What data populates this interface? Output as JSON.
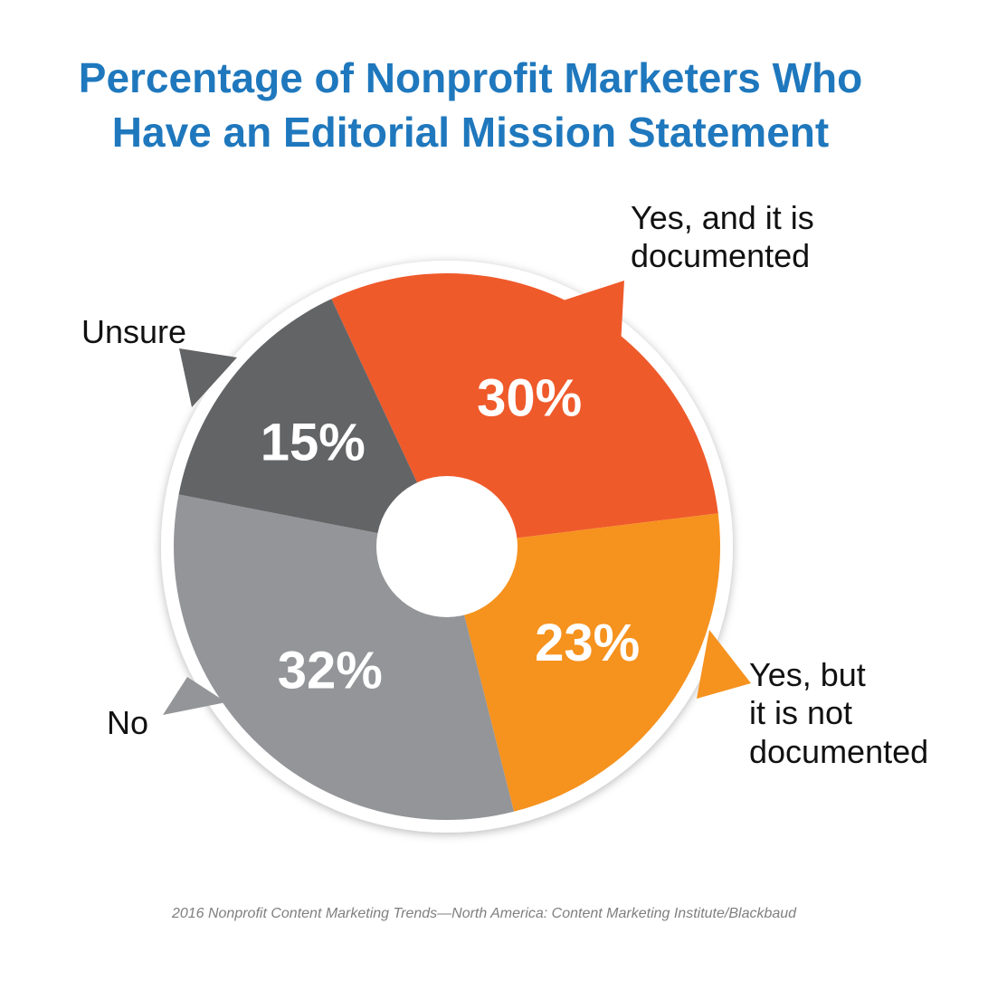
{
  "title": {
    "line1": "Percentage of Nonprofit Marketers Who",
    "line2": "Have an Editorial Mission Statement"
  },
  "source": "2016 Nonprofit Content Marketing Trends—North America: Content Marketing Institute/Blackbaud",
  "chart_data": {
    "type": "pie",
    "title": "Percentage of Nonprofit Marketers Who Have an Editorial Mission Statement",
    "donut": true,
    "slices": [
      {
        "label": [
          "Yes, and it is",
          "documented"
        ],
        "value": 30,
        "value_label": "30%",
        "color": "#ef5a2b"
      },
      {
        "label": [
          "Yes, but",
          "it is not",
          "documented"
        ],
        "value": 23,
        "value_label": "23%",
        "color": "#f6921e"
      },
      {
        "label": [
          "No"
        ],
        "value": 32,
        "value_label": "32%",
        "color": "#939598"
      },
      {
        "label": [
          "Unsure"
        ],
        "value": 15,
        "value_label": "15%",
        "color": "#636466"
      }
    ]
  }
}
